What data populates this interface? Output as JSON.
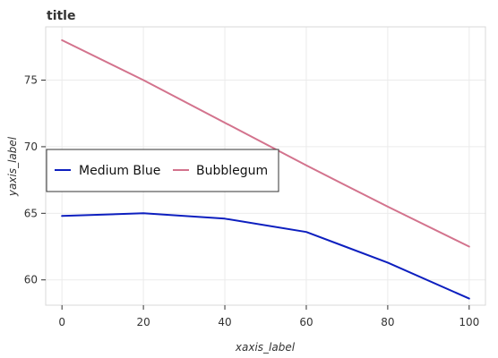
{
  "chart_data": {
    "type": "line",
    "title": "title",
    "xlabel": "xaxis_label",
    "ylabel": "yaxis_label",
    "x": [
      0,
      20,
      40,
      60,
      80,
      100
    ],
    "x_ticks": [
      0,
      20,
      40,
      60,
      80,
      100
    ],
    "y_ticks": [
      60,
      65,
      70,
      75
    ],
    "xlim": [
      -4,
      104
    ],
    "ylim": [
      58.1,
      79
    ],
    "grid": true,
    "legend_position": "upper-left",
    "series": [
      {
        "name": "Medium Blue",
        "color": "#0d1fbf",
        "values": [
          64.8,
          65.0,
          64.6,
          63.6,
          61.3,
          58.6
        ]
      },
      {
        "name": "Bubblegum",
        "color": "#d3738d",
        "values": [
          78.0,
          75.0,
          71.8,
          68.6,
          65.5,
          62.5
        ]
      }
    ]
  }
}
